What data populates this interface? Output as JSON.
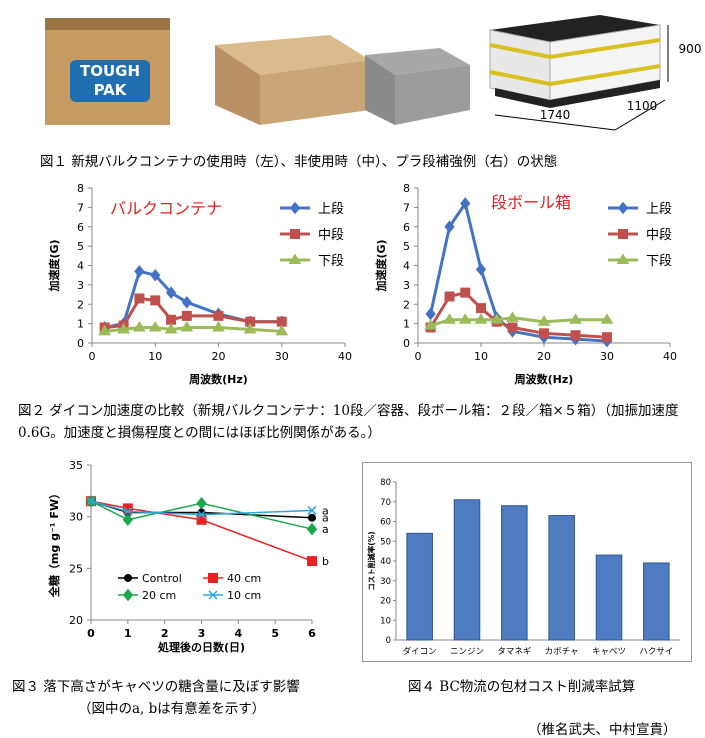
{
  "photo_labels": {
    "logo_top": "TOUGH",
    "logo_bottom": "PAK",
    "height": "900",
    "length": "1740",
    "width": "1100"
  },
  "captions": {
    "fig1": "図１ 新規バルクコンテナの使用時（左）、非使用時（中）、プラ段補強例（右）の状態",
    "fig2": "図２ ダイコン加速度の比較（新規バルクコンテナ：10段／容器、段ボール箱：２段／箱×５箱）（加振加速度0.6G。加速度と損傷程度との間にはほぼ比例関係がある。）",
    "fig3": "図３ 落下高さがキャベツの糖含量に及ぼす影響",
    "fig3_note": "（図中のa, bは有意差を示す）",
    "fig4": "図４ BC物流の包材コスト削減率試算",
    "credit": "（椎名武夫、中村宣貴）"
  },
  "chart_data": [
    {
      "type": "line",
      "annotation": "バルクコンテナ",
      "y_label": "加速度(G)",
      "x_label": "周波数(Hz)",
      "legend": "upper right",
      "x": [
        2,
        5,
        7.5,
        10,
        12.5,
        15,
        20,
        25,
        30
      ],
      "xlim": [
        0,
        40
      ],
      "xticks": [
        0,
        10,
        20,
        30,
        40
      ],
      "ylim": [
        0,
        8
      ],
      "yticks": [
        0,
        1,
        2,
        3,
        4,
        5,
        6,
        7,
        8
      ],
      "series": [
        {
          "name": "上段",
          "color": "#4472c4",
          "marker": "diamond",
          "values": [
            0.8,
            1.0,
            3.7,
            3.5,
            2.6,
            2.1,
            1.5,
            1.1,
            1.1
          ]
        },
        {
          "name": "中段",
          "color": "#c0504d",
          "marker": "square",
          "values": [
            0.8,
            0.9,
            2.3,
            2.2,
            1.2,
            1.4,
            1.4,
            1.1,
            1.1
          ]
        },
        {
          "name": "下段",
          "color": "#9bbb59",
          "marker": "triangle",
          "values": [
            0.6,
            0.7,
            0.8,
            0.8,
            0.7,
            0.8,
            0.8,
            0.7,
            0.6
          ]
        }
      ]
    },
    {
      "type": "line",
      "annotation": "段ボール箱",
      "y_label": "加速度(G)",
      "x_label": "周波数(Hz)",
      "legend": "upper right",
      "x": [
        2,
        5,
        7.5,
        10,
        12.5,
        15,
        20,
        25,
        30
      ],
      "xlim": [
        0,
        40
      ],
      "xticks": [
        0,
        10,
        20,
        30,
        40
      ],
      "ylim": [
        0,
        8
      ],
      "yticks": [
        0,
        1,
        2,
        3,
        4,
        5,
        6,
        7,
        8
      ],
      "series": [
        {
          "name": "上段",
          "color": "#4472c4",
          "marker": "diamond",
          "values": [
            1.5,
            6.0,
            7.2,
            3.8,
            1.3,
            0.6,
            0.3,
            0.2,
            0.1
          ]
        },
        {
          "name": "中段",
          "color": "#c0504d",
          "marker": "square",
          "values": [
            0.8,
            2.4,
            2.6,
            1.8,
            1.1,
            0.8,
            0.5,
            0.4,
            0.3
          ]
        },
        {
          "name": "下段",
          "color": "#9bbb59",
          "marker": "triangle",
          "values": [
            0.9,
            1.2,
            1.2,
            1.2,
            1.2,
            1.3,
            1.1,
            1.2,
            1.2
          ]
        }
      ]
    },
    {
      "type": "line",
      "y_label": "全糖（mg g⁻¹ FW）",
      "x_label": "処理後の日数(日)",
      "legend": "lower left",
      "x": [
        0,
        1,
        3,
        6
      ],
      "xlim": [
        0,
        6
      ],
      "xticks": [
        0,
        1,
        2,
        3,
        4,
        5,
        6
      ],
      "ylim": [
        20,
        35
      ],
      "yticks": [
        20,
        25,
        30,
        35
      ],
      "series": [
        {
          "name": "Control",
          "color": "#000000",
          "marker": "circle",
          "values": [
            31.5,
            30.4,
            30.4,
            29.9
          ],
          "end_label": "a"
        },
        {
          "name": "40 cm",
          "color": "#e8231f",
          "marker": "square",
          "values": [
            31.5,
            30.8,
            29.7,
            25.7
          ],
          "end_label": "b"
        },
        {
          "name": "20 cm",
          "color": "#1aa84a",
          "marker": "diamond",
          "values": [
            31.5,
            29.7,
            31.3,
            28.8
          ],
          "end_label": "a"
        },
        {
          "name": "10 cm",
          "color": "#2aa7e0",
          "marker": "x",
          "values": [
            31.5,
            30.5,
            30.2,
            30.6
          ],
          "end_label": "a"
        }
      ]
    },
    {
      "type": "bar",
      "y_label": "コスト削減率(%)",
      "color": "#4f7cc0",
      "categories": [
        "ダイコン",
        "ニンジン",
        "タマネギ",
        "カボチャ",
        "キャベツ",
        "ハクサイ"
      ],
      "values": [
        54,
        71,
        68,
        63,
        43,
        39
      ],
      "ylim": [
        0,
        80
      ],
      "yticks": [
        0,
        10,
        20,
        30,
        40,
        50,
        60,
        70,
        80
      ]
    }
  ]
}
